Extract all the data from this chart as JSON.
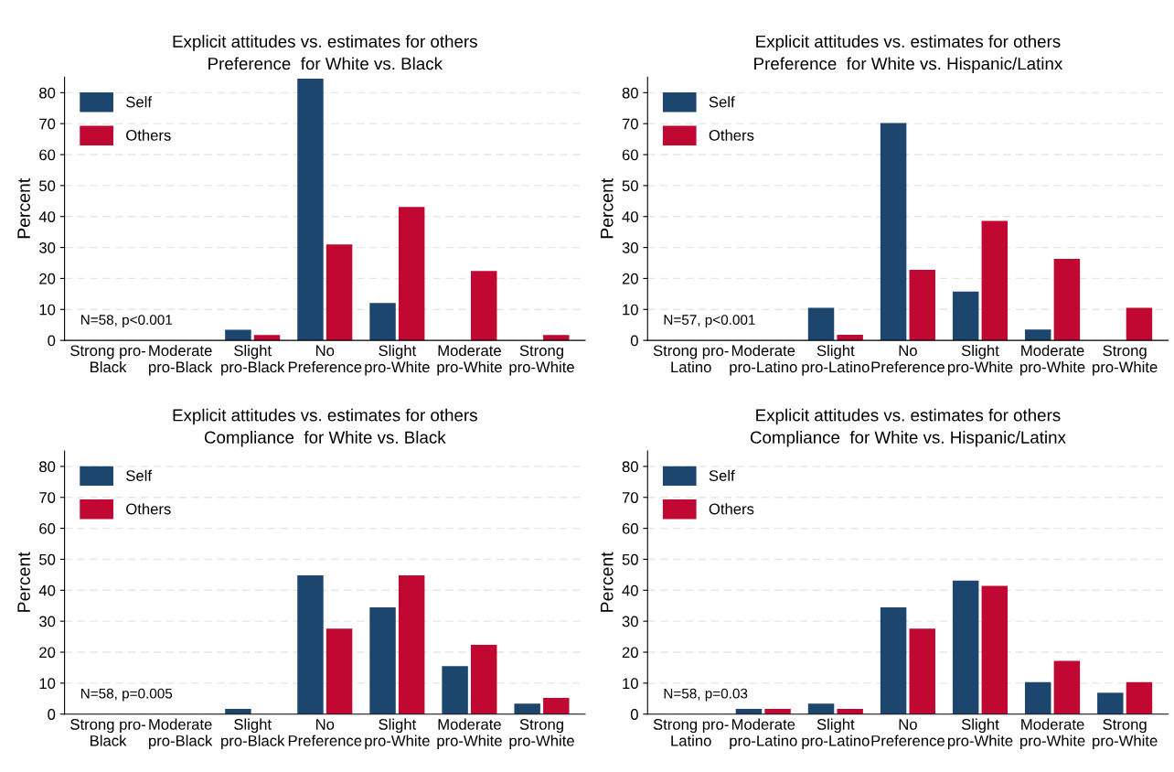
{
  "chart_data": [
    {
      "type": "bar",
      "title": "Explicit attitudes vs. estimates for others",
      "subtitle": "Preference  for White vs. Black",
      "ylabel": "Percent",
      "categories": [
        "Strong pro-\nBlack",
        "Moderate\npro-Black",
        "Slight\npro-Black",
        "No\nPreference",
        "Slight\npro-White",
        "Moderate\npro-White",
        "Strong\npro-White"
      ],
      "series": [
        {
          "name": "Self",
          "color": "#1c466e",
          "values": [
            0,
            0,
            3.4,
            84.5,
            12.1,
            0,
            0
          ]
        },
        {
          "name": "Others",
          "color": "#c10833",
          "values": [
            0,
            0,
            1.7,
            31,
            43.1,
            22.4,
            1.7
          ]
        }
      ],
      "ylim": [
        0,
        85
      ],
      "yticks": [
        0,
        10,
        20,
        30,
        40,
        50,
        60,
        70,
        80
      ],
      "grid": "y",
      "legend": "top left",
      "annotations": [
        "N=58, p<0.001"
      ]
    },
    {
      "type": "bar",
      "title": "Explicit attitudes vs. estimates for others",
      "subtitle": "Preference  for White vs. Hispanic/Latinx",
      "ylabel": "Percent",
      "categories": [
        "Strong pro-\nLatino",
        "Moderate\npro-Latino",
        "Slight\npro-Latino",
        "No\nPreference",
        "Slight\npro-White",
        "Moderate\npro-White",
        "Strong\npro-White"
      ],
      "series": [
        {
          "name": "Self",
          "color": "#1c466e",
          "values": [
            0,
            0,
            10.5,
            70.2,
            15.8,
            3.5,
            0
          ]
        },
        {
          "name": "Others",
          "color": "#c10833",
          "values": [
            0,
            0,
            1.8,
            22.8,
            38.6,
            26.3,
            10.5
          ]
        }
      ],
      "ylim": [
        0,
        85
      ],
      "yticks": [
        0,
        10,
        20,
        30,
        40,
        50,
        60,
        70,
        80
      ],
      "grid": "y",
      "legend": "top left",
      "annotations": [
        "N=57, p<0.001"
      ]
    },
    {
      "type": "bar",
      "title": "Explicit attitudes vs. estimates for others",
      "subtitle": "Compliance  for White vs. Black",
      "ylabel": "Percent",
      "categories": [
        "Strong pro-\nBlack",
        "Moderate\npro-Black",
        "Slight\npro-Black",
        "No\nPreference",
        "Slight\npro-White",
        "Moderate\npro-White",
        "Strong\npro-White"
      ],
      "series": [
        {
          "name": "Self",
          "color": "#1c466e",
          "values": [
            0,
            0,
            1.7,
            44.8,
            34.5,
            15.5,
            3.4
          ]
        },
        {
          "name": "Others",
          "color": "#c10833",
          "values": [
            0,
            0,
            0,
            27.6,
            44.8,
            22.4,
            5.2
          ]
        }
      ],
      "ylim": [
        0,
        85
      ],
      "yticks": [
        0,
        10,
        20,
        30,
        40,
        50,
        60,
        70,
        80
      ],
      "grid": "y",
      "legend": "top left",
      "annotations": [
        "N=58, p=0.005"
      ]
    },
    {
      "type": "bar",
      "title": "Explicit attitudes vs. estimates for others",
      "subtitle": "Compliance  for White vs. Hispanic/Latinx",
      "ylabel": "Percent",
      "categories": [
        "Strong pro-\nLatino",
        "Moderate\npro-Latino",
        "Slight\npro-Latino",
        "No\nPreference",
        "Slight\npro-White",
        "Moderate\npro-White",
        "Strong\npro-White"
      ],
      "series": [
        {
          "name": "Self",
          "color": "#1c466e",
          "values": [
            0,
            1.7,
            3.4,
            34.5,
            43.1,
            10.3,
            6.9
          ]
        },
        {
          "name": "Others",
          "color": "#c10833",
          "values": [
            0,
            1.7,
            1.7,
            27.6,
            41.4,
            17.2,
            10.3
          ]
        }
      ],
      "ylim": [
        0,
        85
      ],
      "yticks": [
        0,
        10,
        20,
        30,
        40,
        50,
        60,
        70,
        80
      ],
      "grid": "y",
      "legend": "top left",
      "annotations": [
        "N=58, p=0.03"
      ]
    }
  ]
}
